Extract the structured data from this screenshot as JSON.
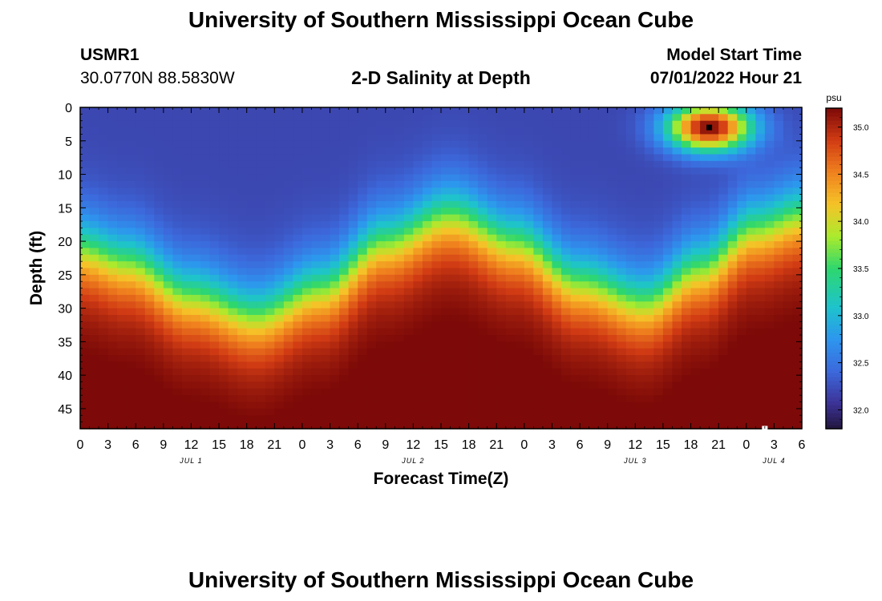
{
  "header": {
    "title": "University of Southern Mississippi Ocean Cube",
    "station": "USMR1",
    "coords": "30.0770N  88.5830W",
    "plot_title": "2-D Salinity at Depth",
    "model_start_label": "Model Start Time",
    "model_start_value": "07/01/2022 Hour 21"
  },
  "footer": {
    "title": "University of Southern Mississippi Ocean Cube"
  },
  "chart_data": {
    "type": "heatmap",
    "title": "2-D Salinity at Depth",
    "xlabel": "Forecast Time(Z)",
    "ylabel": "Depth (ft)",
    "x_range_hours": [
      0,
      78
    ],
    "y_range_ft": [
      0,
      48
    ],
    "x_ticks": [
      "0",
      "3",
      "6",
      "9",
      "12",
      "15",
      "18",
      "21",
      "0",
      "3",
      "6",
      "9",
      "12",
      "15",
      "18",
      "21",
      "0",
      "3",
      "6",
      "9",
      "12",
      "15",
      "18",
      "21",
      "0",
      "3",
      "6"
    ],
    "y_ticks": [
      "0",
      "5",
      "10",
      "15",
      "20",
      "25",
      "30",
      "35",
      "40",
      "45"
    ],
    "date_labels": [
      {
        "hour": 12,
        "label": "JUL 1"
      },
      {
        "hour": 36,
        "label": "JUL 2"
      },
      {
        "hour": 60,
        "label": "JUL 3"
      },
      {
        "hour": 75,
        "label": "JUL 4"
      }
    ],
    "colorbar": {
      "unit": "psu",
      "range": [
        31.8,
        35.2
      ],
      "ticks": [
        "32.0",
        "32.5",
        "33.0",
        "33.5",
        "34.0",
        "34.5",
        "35.0"
      ]
    },
    "halocline_depth_ft": [
      {
        "hour": 0,
        "depth": 21
      },
      {
        "hour": 5,
        "depth": 23
      },
      {
        "hour": 12,
        "depth": 28
      },
      {
        "hour": 19,
        "depth": 31
      },
      {
        "hour": 26,
        "depth": 27
      },
      {
        "hour": 33,
        "depth": 20
      },
      {
        "hour": 40,
        "depth": 16
      },
      {
        "hour": 47,
        "depth": 20
      },
      {
        "hour": 54,
        "depth": 26
      },
      {
        "hour": 61,
        "depth": 29
      },
      {
        "hour": 67,
        "depth": 24
      },
      {
        "hour": 73,
        "depth": 18
      },
      {
        "hour": 78,
        "depth": 16
      }
    ],
    "surface_salinity_psu": 32.2,
    "bottom_salinity_psu": 35.1,
    "surface_max": {
      "hour": 68,
      "depth_ft": 3,
      "value_psu": 35.2
    },
    "markers": [
      {
        "hour": 68,
        "depth_ft": 3,
        "color": "#000000"
      },
      {
        "hour": 74,
        "depth_ft": 48,
        "color": "#ffffff"
      }
    ]
  }
}
